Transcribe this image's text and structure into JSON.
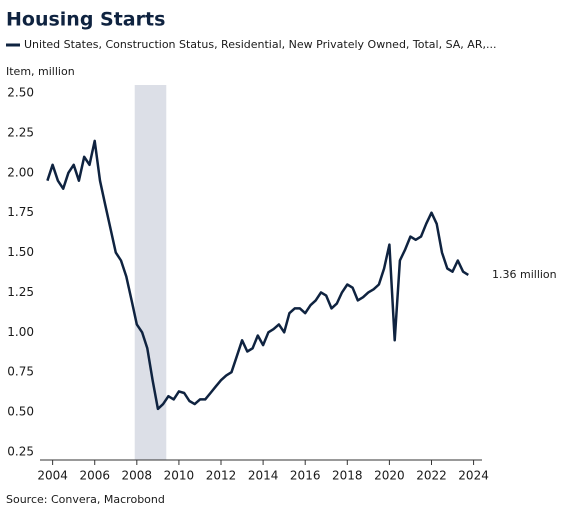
{
  "chart_data": {
    "type": "line",
    "title": "Housing Starts",
    "y_label": "Item, million",
    "source": "Source: Convera, Macrobond",
    "annotation": "1.36 million",
    "shade": [
      2007.9,
      2009.4
    ],
    "xlim": [
      2003.4,
      2024.4
    ],
    "xticks": [
      2004,
      2006,
      2008,
      2010,
      2012,
      2014,
      2016,
      2018,
      2020,
      2022,
      2024
    ],
    "ylim": [
      0.2,
      2.55
    ],
    "yticks": [
      {
        "value": 0.25,
        "label": "0.25"
      },
      {
        "value": 0.5,
        "label": "0.50"
      },
      {
        "value": 0.75,
        "label": "0.75"
      },
      {
        "value": 1,
        "label": "1.00"
      },
      {
        "value": 1.25,
        "label": "1.25"
      },
      {
        "value": 1.5,
        "label": "1.50"
      },
      {
        "value": 1.75,
        "label": "1.75"
      },
      {
        "value": 2,
        "label": "2.00"
      },
      {
        "value": 2.25,
        "label": "2.25"
      },
      {
        "value": 2.5,
        "label": "2.50"
      }
    ],
    "grid": false,
    "x": [
      2003.75,
      2004,
      2004.25,
      2004.5,
      2004.75,
      2005,
      2005.25,
      2005.5,
      2005.75,
      2006,
      2006.25,
      2006.5,
      2006.75,
      2007,
      2007.25,
      2007.5,
      2007.75,
      2008,
      2008.25,
      2008.5,
      2008.75,
      2009,
      2009.25,
      2009.5,
      2009.75,
      2010,
      2010.25,
      2010.5,
      2010.75,
      2011,
      2011.25,
      2011.5,
      2011.75,
      2012,
      2012.25,
      2012.5,
      2012.75,
      2013,
      2013.25,
      2013.5,
      2013.75,
      2014,
      2014.25,
      2014.5,
      2014.75,
      2015,
      2015.25,
      2015.5,
      2015.75,
      2016,
      2016.25,
      2016.5,
      2016.75,
      2017,
      2017.25,
      2017.5,
      2017.75,
      2018,
      2018.25,
      2018.5,
      2018.75,
      2019,
      2019.25,
      2019.5,
      2019.75,
      2020,
      2020.25,
      2020.5,
      2020.75,
      2021,
      2021.25,
      2021.5,
      2021.75,
      2022,
      2022.25,
      2022.5,
      2022.75,
      2023,
      2023.25,
      2023.5,
      2023.75
    ],
    "series": [
      {
        "name": "United States, Construction Status, Residential, New Privately Owned, Total, SA, AR,...",
        "color": "#0f2340",
        "values": [
          1.95,
          2.05,
          1.95,
          1.9,
          2.0,
          2.05,
          1.95,
          2.1,
          2.05,
          2.2,
          1.95,
          1.8,
          1.65,
          1.5,
          1.45,
          1.35,
          1.2,
          1.05,
          1.0,
          0.9,
          0.7,
          0.52,
          0.55,
          0.6,
          0.58,
          0.63,
          0.62,
          0.57,
          0.55,
          0.58,
          0.58,
          0.62,
          0.66,
          0.7,
          0.73,
          0.75,
          0.85,
          0.95,
          0.88,
          0.9,
          0.98,
          0.92,
          1.0,
          1.02,
          1.05,
          1.0,
          1.12,
          1.15,
          1.15,
          1.12,
          1.17,
          1.2,
          1.25,
          1.23,
          1.15,
          1.18,
          1.25,
          1.3,
          1.28,
          1.2,
          1.22,
          1.25,
          1.27,
          1.3,
          1.4,
          1.55,
          0.95,
          1.45,
          1.52,
          1.6,
          1.58,
          1.6,
          1.68,
          1.75,
          1.68,
          1.5,
          1.4,
          1.38,
          1.45,
          1.38,
          1.36
        ]
      }
    ]
  }
}
